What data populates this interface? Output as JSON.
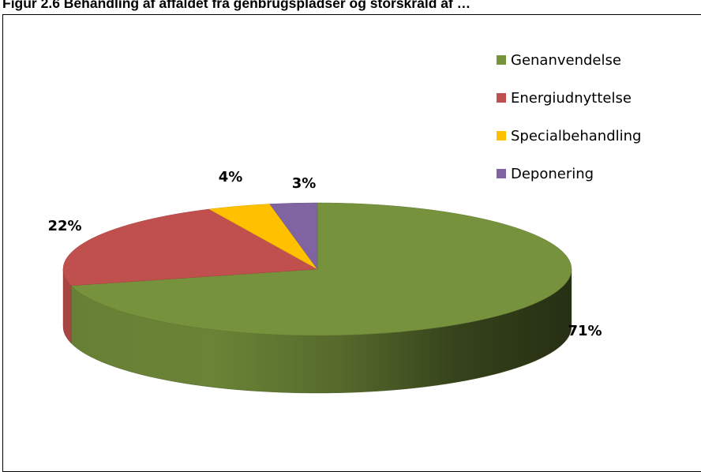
{
  "page": {
    "title": "Figur 2.6 Behandling af affaldet fra genbrugspladser og storskrald af …"
  },
  "chart_data": {
    "type": "pie",
    "title": "",
    "three_d": true,
    "slices": [
      {
        "label": "Genanvendelse",
        "value": 71,
        "display": "71%",
        "color": "#76923C"
      },
      {
        "label": "Energiudnyttelse",
        "value": 22,
        "display": "22%",
        "color": "#C0504D"
      },
      {
        "label": "Specialbehandling",
        "value": 4,
        "display": "4%",
        "color": "#FFC000"
      },
      {
        "label": "Deponering",
        "value": 3,
        "display": "3%",
        "color": "#8064A2"
      }
    ],
    "legend_position": "top-right"
  }
}
